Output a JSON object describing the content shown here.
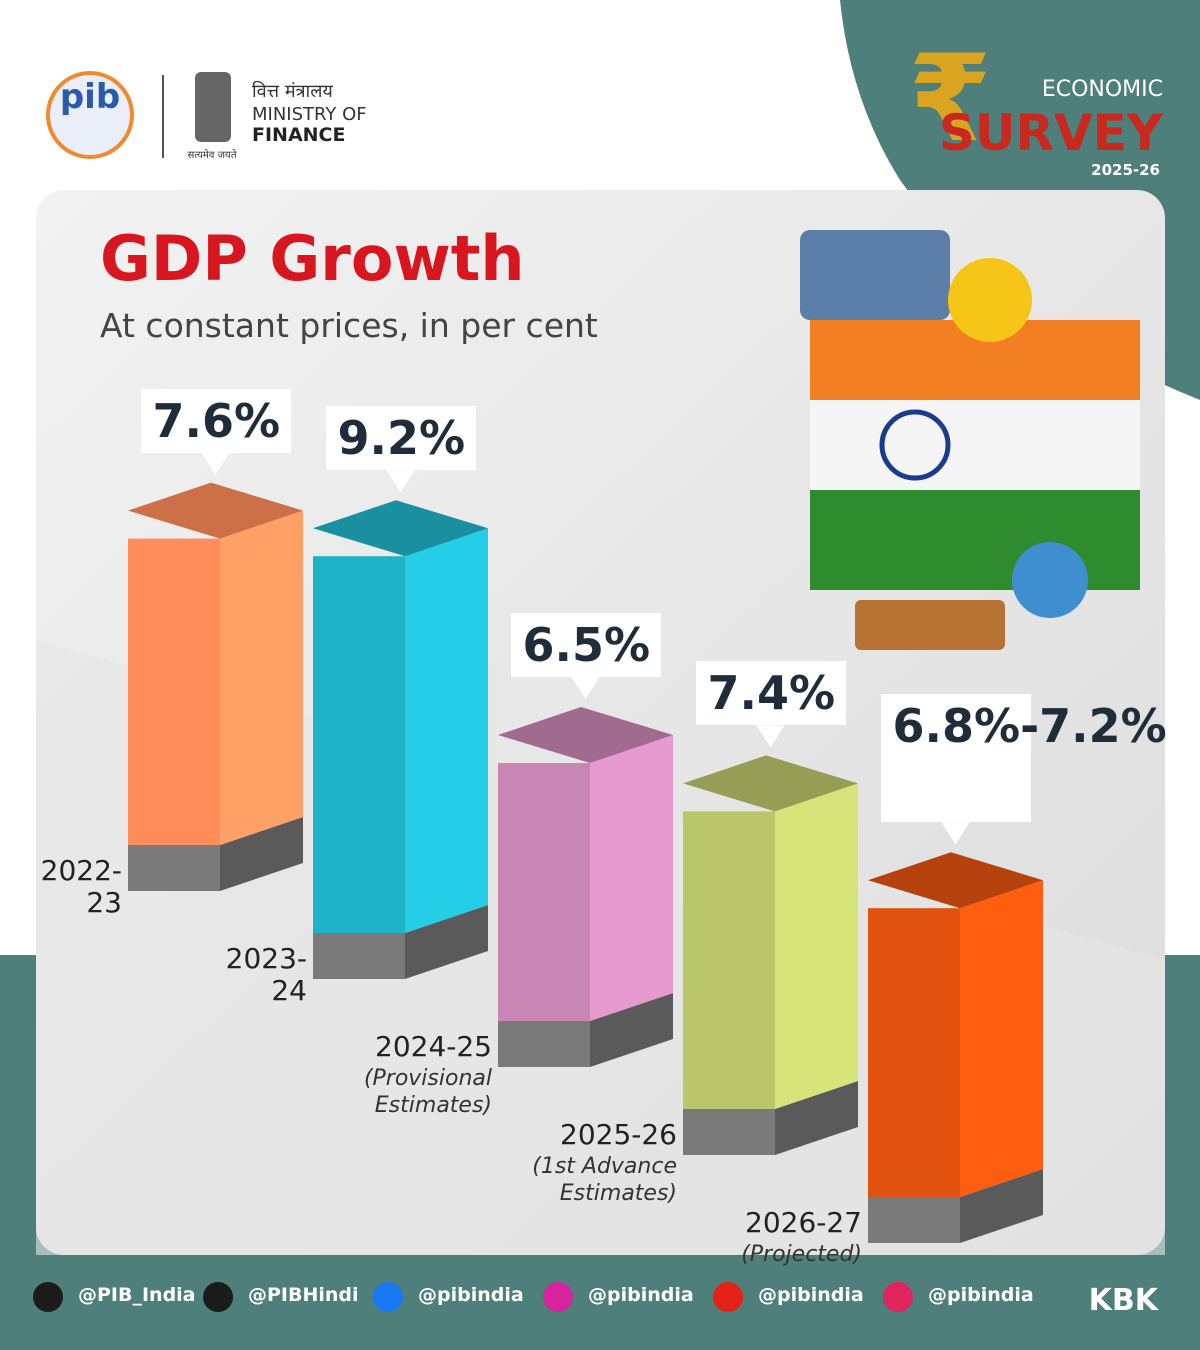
{
  "header": {
    "pib_logo": "pib",
    "ministry_hindi": "वित्त मंत्रालय",
    "ministry_line1": "MINISTRY OF",
    "ministry_line2": "FINANCE",
    "motto": "सत्यमेव जयते"
  },
  "badge": {
    "symbol": "₹",
    "line1": "ECONOMIC",
    "line2": "SURVEY",
    "year": "2025-26"
  },
  "chart_data": {
    "type": "bar3d",
    "title": "GDP Growth",
    "subtitle": "At constant prices, in per cent",
    "categories": [
      "2022-23",
      "2023-24",
      "2024-25",
      "2025-26",
      "2026-27"
    ],
    "category_notes": [
      null,
      null,
      "(Provisional Estimates)",
      "(1st Advance Estimates)",
      "(Projected)"
    ],
    "values": [
      7.6,
      9.2,
      6.5,
      7.4,
      [
        6.8,
        7.2
      ]
    ],
    "value_labels": [
      "7.6%",
      "9.2%",
      "6.5%",
      "7.4%",
      "6.8%-7.2%"
    ],
    "colors": [
      "#ff8c5a",
      "#1fb3c8",
      "#c986b4",
      "#b9c76a",
      "#e2520f"
    ]
  },
  "footer": {
    "handles": [
      "@PIB_India",
      "@PIBHindi",
      "@pibindia",
      "@pibindia",
      "@pibindia",
      "@pibindia"
    ],
    "icon_colors": [
      "#1b1b1b",
      "#1b1b1b",
      "#1877f2",
      "#d6249f",
      "#e62117",
      "#e0245e"
    ],
    "credit": "KBK"
  }
}
